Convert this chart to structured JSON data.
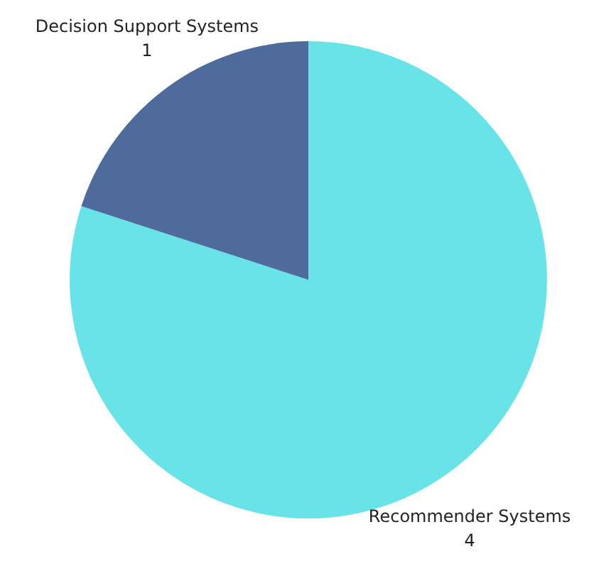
{
  "chart_data": {
    "type": "pie",
    "categories": [
      "Recommender Systems",
      "Decision Support Systems"
    ],
    "values": [
      4,
      1
    ],
    "colors": [
      "#68e4e8",
      "#4e6b9c"
    ],
    "data_labels": true
  }
}
